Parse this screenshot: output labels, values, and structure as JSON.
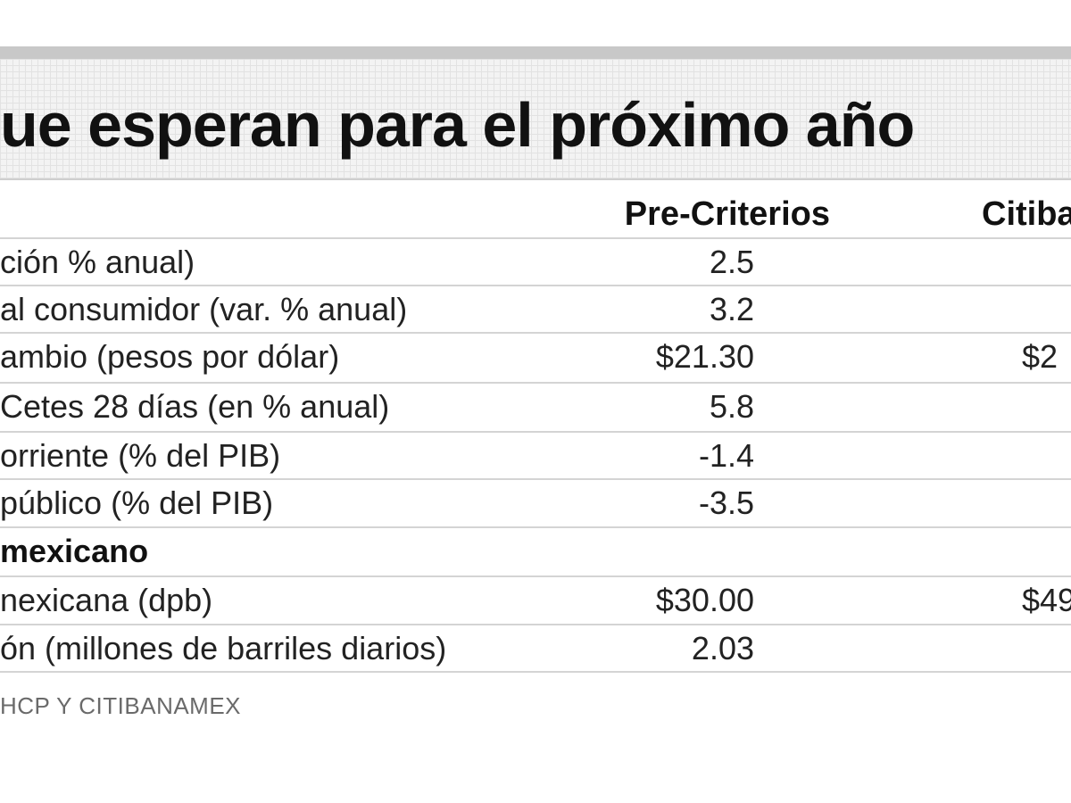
{
  "title": "ue esperan para el próximo año",
  "chart_data": {
    "type": "table",
    "columns": [
      "Pre-Criterios",
      "Citiba"
    ],
    "rows": [
      {
        "label": "ción % anual)",
        "pre_criterios": "2.5",
        "citi": ""
      },
      {
        "label": "al consumidor (var. % anual)",
        "pre_criterios": "3.2",
        "citi": ""
      },
      {
        "label": "ambio (pesos por dólar)",
        "pre_criterios": "$21.30",
        "citi": "$2"
      },
      {
        "label": "Cetes 28 días (en % anual)",
        "pre_criterios": "5.8",
        "citi": ""
      },
      {
        "label": "orriente (% del PIB)",
        "pre_criterios": "-1.4",
        "citi": ""
      },
      {
        "label": "público (% del PIB)",
        "pre_criterios": "-3.5",
        "citi": ""
      },
      {
        "label": "mexicano",
        "pre_criterios": "",
        "citi": "",
        "section": true
      },
      {
        "label": "nexicana (dpb)",
        "pre_criterios": "$30.00",
        "citi": "$49"
      },
      {
        "label": "ón (millones de barriles diarios)",
        "pre_criterios": "2.03",
        "citi": ""
      }
    ]
  },
  "source": "HCP Y CITIBANAMEX"
}
